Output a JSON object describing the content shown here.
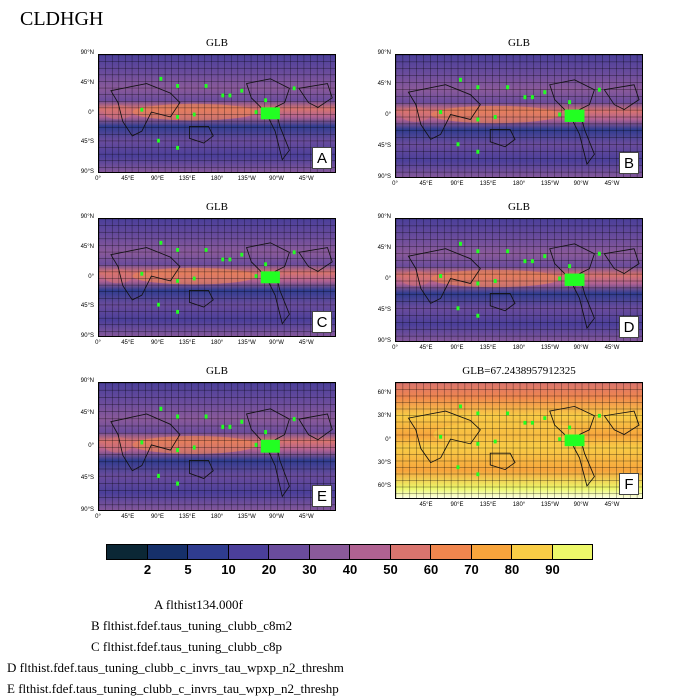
{
  "page": {
    "title": "CLDHGH"
  },
  "chart_data": {
    "type": "heatmap",
    "colorbar": {
      "levels": [
        "2",
        "5",
        "10",
        "20",
        "30",
        "40",
        "50",
        "60",
        "70",
        "80",
        "90"
      ],
      "colors": [
        "#0b2735",
        "#16306a",
        "#2f3c8f",
        "#4b3f9a",
        "#6a4c9c",
        "#8a5a9a",
        "#b06292",
        "#d9746e",
        "#f0864e",
        "#f7a43c",
        "#f9cd46",
        "#edf86a"
      ]
    },
    "lat_ticks": [
      "90°N",
      "45°N",
      "0°",
      "45°S",
      "90°S"
    ],
    "lon_ticks": [
      "0°",
      "45°E",
      "90°E",
      "135°E",
      "180°",
      "135°W",
      "90°W",
      "45°W"
    ],
    "lat_ticks_f": [
      "60°N",
      "30°N",
      "0°",
      "30°S",
      "60°S"
    ],
    "lon_ticks_f": [
      "45°E",
      "90°E",
      "135°E",
      "180°",
      "135°W",
      "90°W",
      "45°W"
    ],
    "panels": [
      {
        "letter": "A",
        "title": "GLB",
        "style": "purple"
      },
      {
        "letter": "B",
        "title": "GLB",
        "style": "purple"
      },
      {
        "letter": "C",
        "title": "GLB",
        "style": "purple"
      },
      {
        "letter": "D",
        "title": "GLB",
        "style": "purple"
      },
      {
        "letter": "E",
        "title": "GLB",
        "style": "purple"
      },
      {
        "letter": "F",
        "title": "GLB=67.2438957912325",
        "style": "yellow"
      }
    ]
  },
  "legend": [
    "A  flthist134.000f",
    "B  flthist.fdef.taus_tuning_clubb_c8m2",
    "C  flthist.fdef.taus_tuning_clubb_c8p",
    "D  flthist.fdef.taus_tuning_clubb_c_invrs_tau_wpxp_n2_threshm",
    "E  flthist.fdef.taus_tuning_clubb_c_invrs_tau_wpxp_n2_threshp"
  ]
}
